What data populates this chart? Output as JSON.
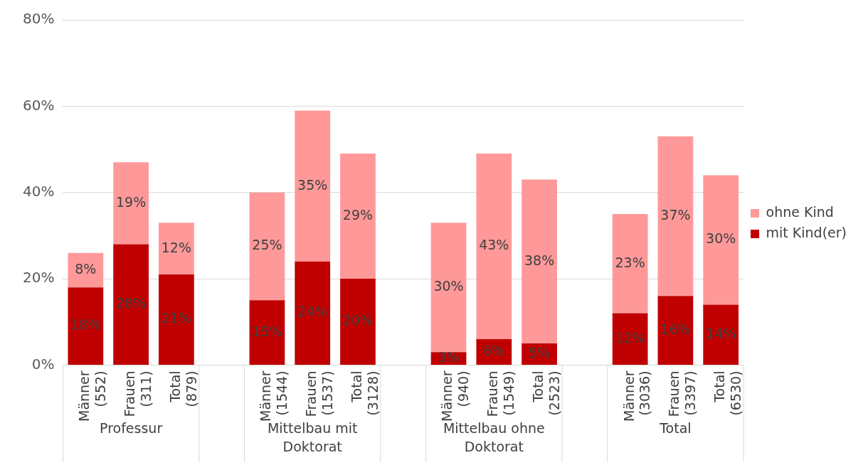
{
  "chart_data": {
    "type": "bar",
    "stacked": true,
    "categories": [
      "Männer (552)",
      "Frauen (311)",
      "Total (879)",
      null,
      "Männer (1544)",
      "Frauen (1537)",
      "Total (3128)",
      null,
      "Männer (940)",
      "Frauen (1549)",
      "Total (2523)",
      null,
      "Männer (3036)",
      "Frauen (3397)",
      "Total (6530)"
    ],
    "series": [
      {
        "name": "mit Kind(er)",
        "color": "#c00000",
        "values": [
          18,
          28,
          21,
          null,
          15,
          24,
          20,
          null,
          3,
          6,
          5,
          null,
          12,
          16,
          14
        ],
        "value_labels": [
          "18%",
          "28%",
          "21%",
          null,
          "15%",
          "24%",
          "20%",
          null,
          "3%",
          "6%",
          "5%",
          null,
          "12%",
          "16%",
          "14%"
        ]
      },
      {
        "name": "ohne Kind",
        "color": "#ff9999",
        "values": [
          8,
          19,
          12,
          null,
          25,
          35,
          29,
          null,
          30,
          43,
          38,
          null,
          23,
          37,
          30
        ],
        "value_labels": [
          "8%",
          "19%",
          "12%",
          null,
          "25%",
          "35%",
          "29%",
          null,
          "30%",
          "43%",
          "38%",
          null,
          "23%",
          "37%",
          "30%"
        ]
      }
    ],
    "ylim": [
      0,
      80
    ],
    "yticks": [
      {
        "value": 0,
        "label": "0%"
      },
      {
        "value": 20,
        "label": "20%"
      },
      {
        "value": 40,
        "label": "40%"
      },
      {
        "value": 60,
        "label": "60%"
      },
      {
        "value": 80,
        "label": "80%"
      }
    ],
    "grid": "y",
    "legend": "right",
    "annotations": [
      "Professur",
      "Mittelbau mit Doktorat",
      "Mittelbau ohne Doktorat",
      "Total"
    ]
  }
}
